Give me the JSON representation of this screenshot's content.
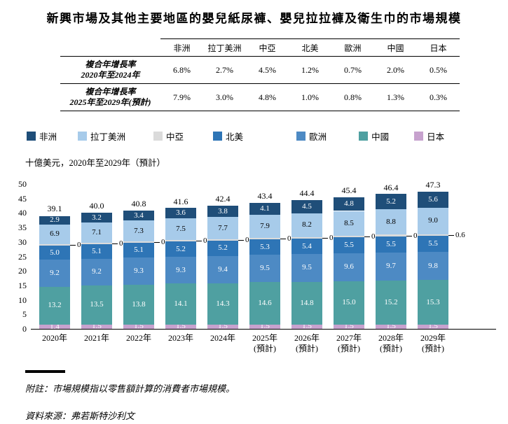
{
  "title": "新興市場及其他主要地區的嬰兒紙尿褲、嬰兒拉拉褲及衛生巾的市場規模",
  "table": {
    "columns": [
      "非洲",
      "拉丁美洲",
      "中亞",
      "北美",
      "歐洲",
      "中國",
      "日本"
    ],
    "rows": [
      {
        "label_line1": "複合年增長率",
        "label_line2": "2020年至2024年",
        "values": [
          "6.8%",
          "2.7%",
          "4.5%",
          "1.2%",
          "0.7%",
          "2.0%",
          "0.5%"
        ]
      },
      {
        "label_line1": "複合年增長率",
        "label_line2": "2025年至2029年(預計)",
        "values": [
          "7.9%",
          "3.0%",
          "4.8%",
          "1.0%",
          "0.8%",
          "1.3%",
          "0.3%"
        ]
      }
    ]
  },
  "axis_note": "十億美元，2020年至2029年（預計）",
  "chart_data": {
    "type": "bar",
    "stacked": true,
    "ylim": [
      0,
      50
    ],
    "yticks": [
      0,
      5,
      10,
      15,
      20,
      25,
      30,
      35,
      40,
      45,
      50
    ],
    "legend_position": "top",
    "grid": false,
    "categories": [
      {
        "label": "2020年",
        "sub": ""
      },
      {
        "label": "2021年",
        "sub": ""
      },
      {
        "label": "2022年",
        "sub": ""
      },
      {
        "label": "2023年",
        "sub": ""
      },
      {
        "label": "2024年",
        "sub": ""
      },
      {
        "label": "2025年",
        "sub": "(預計)"
      },
      {
        "label": "2026年",
        "sub": "(預計)"
      },
      {
        "label": "2027年",
        "sub": "(預計)"
      },
      {
        "label": "2028年",
        "sub": "(預計)"
      },
      {
        "label": "2029年",
        "sub": "(預計)"
      }
    ],
    "series": [
      {
        "name": "非洲",
        "color": "#1F4E79",
        "label_color": "#FFFFFF",
        "label_mode": "inside",
        "values": [
          "2.9",
          "3.2",
          "3.4",
          "3.6",
          "3.8",
          "4.1",
          "4.5",
          "4.8",
          "5.2",
          "5.6"
        ]
      },
      {
        "name": "拉丁美洲",
        "color": "#A7CBEA",
        "label_color": "#000000",
        "label_mode": "inside",
        "values": [
          "6.9",
          "7.1",
          "7.3",
          "7.5",
          "7.7",
          "7.9",
          "8.2",
          "8.5",
          "8.8",
          "9.0"
        ]
      },
      {
        "name": "中亞",
        "color": "#DBDBDB",
        "label_color": "#000000",
        "label_mode": "outside",
        "values": [
          "0.4",
          "0.4",
          "0.4",
          "0.5",
          "0.5",
          "0.5",
          "0.5",
          "0.6",
          "0.6",
          "0.6"
        ]
      },
      {
        "name": "北美",
        "color": "#2E75B6",
        "label_color": "#FFFFFF",
        "label_mode": "inside",
        "values": [
          "5.0",
          "5.1",
          "5.1",
          "5.2",
          "5.2",
          "5.3",
          "5.4",
          "5.5",
          "5.5",
          "5.5"
        ]
      },
      {
        "name": "歐洲",
        "color": "#4D8AC4",
        "label_color": "#FFFFFF",
        "label_mode": "inside",
        "values": [
          "9.2",
          "9.2",
          "9.3",
          "9.3",
          "9.4",
          "9.5",
          "9.5",
          "9.6",
          "9.7",
          "9.8"
        ]
      },
      {
        "name": "中國",
        "color": "#4FA0A1",
        "label_color": "#FFFFFF",
        "label_mode": "inside",
        "values": [
          "13.2",
          "13.5",
          "13.8",
          "14.1",
          "14.3",
          "14.6",
          "14.8",
          "15.0",
          "15.2",
          "15.3"
        ]
      },
      {
        "name": "日本",
        "color": "#C7A2CE",
        "label_color": "#FFFFFF",
        "label_mode": "inside",
        "values": [
          "1.4",
          "1.5",
          "1.5",
          "1.5",
          "1.5",
          "1.5",
          "1.5",
          "1.5",
          "1.5",
          "1.5"
        ]
      }
    ],
    "totals": [
      "39.1",
      "40.0",
      "40.8",
      "41.6",
      "42.4",
      "43.4",
      "44.4",
      "45.4",
      "46.4",
      "47.3"
    ]
  },
  "footnote": "附註：市場規模指以零售額計算的消費者市場規模。",
  "source": "資料來源：弗若斯特沙利文"
}
